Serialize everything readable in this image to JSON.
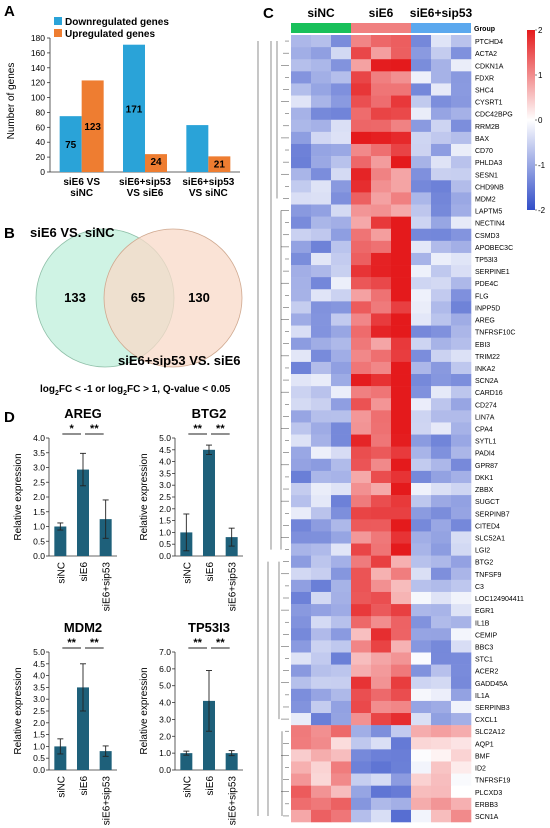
{
  "panels": {
    "a": {
      "letter": "A"
    },
    "b": {
      "letter": "B"
    },
    "c": {
      "letter": "C"
    },
    "d": {
      "letter": "D"
    }
  },
  "chart_data": [
    {
      "type": "bar",
      "panel": "A",
      "ylabel": "Number of genes",
      "ylim": [
        0,
        180
      ],
      "yticks": [
        0,
        20,
        40,
        60,
        80,
        100,
        120,
        140,
        160,
        180
      ],
      "categories": [
        [
          "siE6 VS",
          "siNC"
        ],
        [
          "siE6+sip53",
          "VS siE6"
        ],
        [
          "siE6+sip53",
          "VS siNC"
        ]
      ],
      "series": [
        {
          "name": "Downregulated genes",
          "color": "#2AA3D8",
          "values": [
            75,
            171,
            63
          ],
          "labels": [
            "75",
            "171",
            ""
          ]
        },
        {
          "name": "Upregulated genes",
          "color": "#EE7D31",
          "values": [
            123,
            24,
            21
          ],
          "labels": [
            "123",
            "24",
            "21"
          ]
        }
      ],
      "legend_position": "top-left"
    },
    {
      "type": "venn",
      "panel": "B",
      "sets": [
        {
          "name": "siE6 VS. siNC",
          "only": "133",
          "color": "#CFF3E4"
        },
        {
          "name": "siE6+sip53 VS. siE6",
          "only": "130",
          "color": "#F8D9C8"
        }
      ],
      "overlap": "65",
      "caption_parts": [
        "log",
        "2",
        "FC < -1 or  log",
        "2",
        "FC > 1, Q-value < 0.05"
      ]
    },
    {
      "type": "heatmap",
      "panel": "C",
      "groups": [
        {
          "name": "siNC",
          "color": "#18C05A"
        },
        {
          "name": "siE6",
          "color": "#F08080"
        },
        {
          "name": "siE6+sip53",
          "color": "#5BA8EE"
        }
      ],
      "group_row_label": "Group",
      "scale_ticks": [
        "2",
        "1",
        "0",
        "-1",
        "-2"
      ],
      "genes": [
        "PTCHD4",
        "ACTA2",
        "CDKN1A",
        "FDXR",
        "SHC4",
        "CYSRT1",
        "CDC42BPG",
        "RRM2B",
        "BAX",
        "CD70",
        "PHLDA3",
        "SESN1",
        "CHD9NB",
        "MDM2",
        "LAPTM5",
        "NECTIN4",
        "CSMD3",
        "APOBEC3C",
        "TP53I3",
        "SERPINE1",
        "PDE4C",
        "FLG",
        "INPP5D",
        "AREG",
        "TNFRSF10C",
        "EBI3",
        "TRIM22",
        "INKA2",
        "SCN2A",
        "CARD16",
        "CD274",
        "LIN7A",
        "CPA4",
        "SYTL1",
        "PADI4",
        "GPR87",
        "DKK1",
        "ZBBX",
        "SUGCT",
        "SERPINB7",
        "CITED4",
        "SLC52A1",
        "LGI2",
        "BTG2",
        "TNFSF9",
        "C3",
        "LOC124904411",
        "EGR1",
        "IL1B",
        "CEMIP",
        "BBC3",
        "STC1",
        "ACER2",
        "GADD45A",
        "IL1A",
        "SERPINB3",
        "CXCL1",
        "SLC2A12",
        "AQP1",
        "BMF",
        "ID2",
        "TNFRSF19",
        "PLCXD3",
        "ERBB3",
        "SCN1A"
      ]
    },
    {
      "type": "bar",
      "panel": "D",
      "title": "AREG",
      "ylabel": "Relative expression",
      "ylim": [
        0,
        4.0
      ],
      "yticks": [
        "0.0",
        "0.5",
        "1.0",
        "1.5",
        "2.0",
        "2.5",
        "3.0",
        "3.5",
        "4.0"
      ],
      "categories": [
        "siNC",
        "siE6",
        "siE6+sip53"
      ],
      "values": [
        1.0,
        2.93,
        1.25
      ],
      "errors": [
        0.12,
        0.55,
        0.65
      ],
      "significance": [
        {
          "from": 0,
          "to": 1,
          "label": "*"
        },
        {
          "from": 1,
          "to": 2,
          "label": "**"
        }
      ]
    },
    {
      "type": "bar",
      "panel": "D",
      "title": "BTG2",
      "ylabel": "Relative expression",
      "ylim": [
        0,
        5.0
      ],
      "yticks": [
        "0.0",
        "0.5",
        "1.0",
        "1.5",
        "2.0",
        "2.5",
        "3.0",
        "3.5",
        "4.0",
        "4.5",
        "5.0"
      ],
      "categories": [
        "siNC",
        "siE6",
        "siE6+sip53"
      ],
      "values": [
        1.0,
        4.5,
        0.8
      ],
      "errors": [
        0.78,
        0.2,
        0.38
      ],
      "significance": [
        {
          "from": 0,
          "to": 1,
          "label": "**"
        },
        {
          "from": 1,
          "to": 2,
          "label": "**"
        }
      ]
    },
    {
      "type": "bar",
      "panel": "D",
      "title": "MDM2",
      "ylabel": "Relative expression",
      "ylim": [
        0,
        5.0
      ],
      "yticks": [
        "0.0",
        "0.5",
        "1.0",
        "1.5",
        "2.0",
        "2.5",
        "3.0",
        "3.5",
        "4.0",
        "4.5",
        "5.0"
      ],
      "categories": [
        "siNC",
        "siE6",
        "siE6+sip53"
      ],
      "values": [
        1.0,
        3.5,
        0.8
      ],
      "errors": [
        0.32,
        1.0,
        0.22
      ],
      "significance": [
        {
          "from": 0,
          "to": 1,
          "label": "**"
        },
        {
          "from": 1,
          "to": 2,
          "label": "**"
        }
      ]
    },
    {
      "type": "bar",
      "panel": "D",
      "title": "TP53I3",
      "ylabel": "Relative expression",
      "ylim": [
        0,
        7.0
      ],
      "yticks": [
        "0.0",
        "1.0",
        "2.0",
        "3.0",
        "4.0",
        "5.0",
        "6.0",
        "7.0"
      ],
      "categories": [
        "siNC",
        "siE6",
        "siE6+sip53"
      ],
      "values": [
        1.0,
        4.1,
        1.0
      ],
      "errors": [
        0.12,
        1.8,
        0.15
      ],
      "significance": [
        {
          "from": 0,
          "to": 1,
          "label": "**"
        },
        {
          "from": 1,
          "to": 2,
          "label": "**"
        }
      ]
    }
  ]
}
